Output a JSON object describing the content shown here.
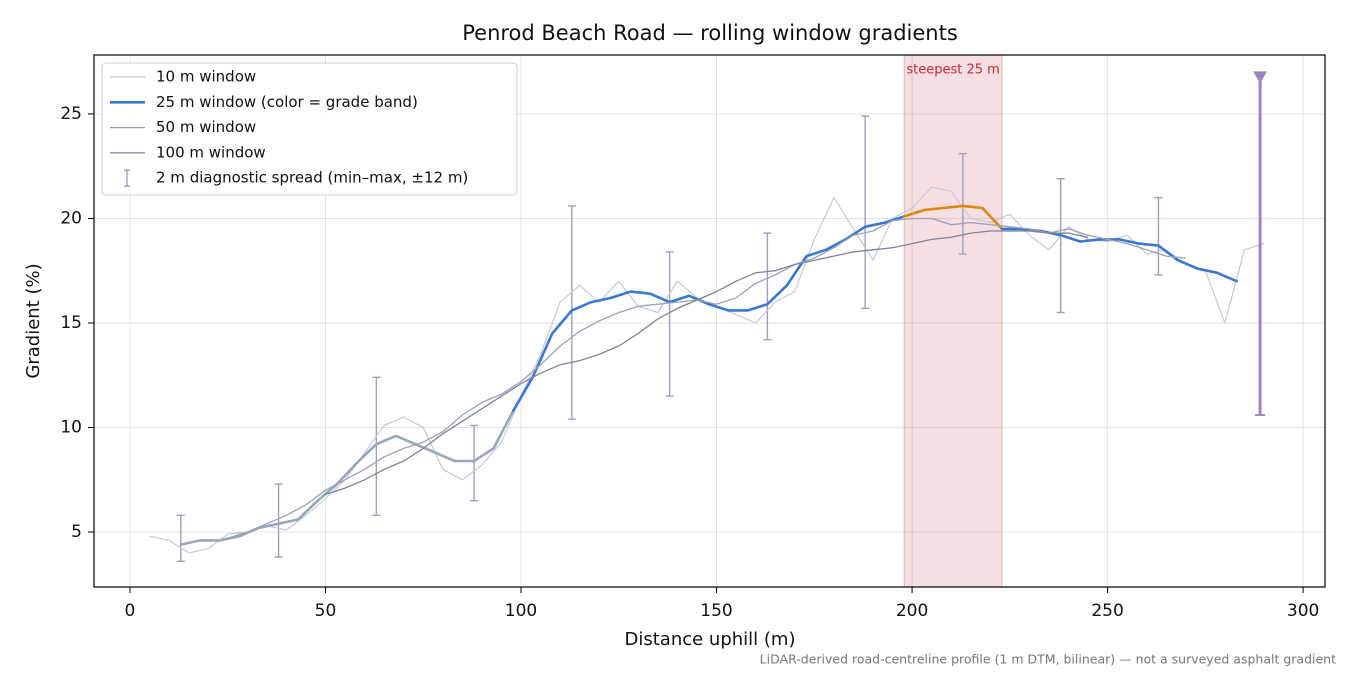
{
  "chart_data": {
    "type": "line",
    "title": "Penrod Beach Road — rolling window gradients",
    "x_label": "Distance uphill (m)",
    "y_label": "Gradient (%)",
    "footnote": "LiDAR-derived road-centreline profile (1 m DTM, bilinear) — not a surveyed asphalt gradient",
    "xlim": [
      -9.2,
      305.6
    ],
    "ylim": [
      2.37,
      27.82
    ],
    "xticks": [
      0,
      50,
      100,
      150,
      200,
      250,
      300
    ],
    "yticks": [
      5,
      10,
      15,
      20,
      25
    ],
    "grid": true,
    "legend": "upper left",
    "series": [
      {
        "name": "10 m window",
        "color": "#c6c9d6",
        "width": 1.2,
        "x": [
          5,
          10,
          15,
          20,
          25,
          30,
          35,
          40,
          45,
          50,
          55,
          60,
          65,
          70,
          75,
          80,
          85,
          90,
          95,
          100,
          105,
          110,
          115,
          120,
          125,
          130,
          135,
          140,
          145,
          150,
          155,
          160,
          165,
          170,
          175,
          180,
          185,
          190,
          195,
          200,
          205,
          210,
          215,
          220,
          225,
          230,
          235,
          240,
          245,
          250,
          255,
          260,
          265,
          270,
          275,
          280,
          285,
          290
        ],
        "values": [
          4.8,
          4.6,
          4.0,
          4.2,
          4.9,
          5.0,
          5.3,
          5.1,
          5.8,
          6.6,
          7.5,
          8.8,
          10.1,
          10.5,
          10.0,
          8.0,
          7.5,
          8.2,
          9.3,
          11.5,
          13.5,
          16.0,
          16.8,
          16.0,
          17.0,
          15.8,
          15.5,
          17.0,
          16.2,
          15.8,
          15.4,
          15.0,
          16.0,
          16.5,
          19.0,
          21.0,
          19.5,
          18.0,
          20.0,
          20.5,
          21.5,
          21.3,
          20.0,
          19.8,
          20.2,
          19.2,
          18.5,
          19.6,
          19.0,
          18.9,
          19.2,
          18.3,
          18.5,
          17.8,
          17.5,
          15.0,
          18.5,
          18.8
        ]
      },
      {
        "name": "25 m window (color = grade band)",
        "color": "#3a78d4",
        "width": 2.6,
        "band_thresholds": [
          10,
          20
        ],
        "band_colors": [
          "#97a6b9",
          "#3a78d4",
          "#d98a0c"
        ],
        "x": [
          13,
          18,
          23,
          28,
          33,
          38,
          43,
          48,
          53,
          58,
          63,
          68,
          73,
          78,
          83,
          88,
          93,
          98,
          103,
          108,
          113,
          118,
          123,
          128,
          133,
          138,
          143,
          148,
          153,
          158,
          163,
          168,
          173,
          178,
          183,
          188,
          193,
          198,
          203,
          208,
          213,
          218,
          223,
          228,
          233,
          238,
          243,
          248,
          253,
          258,
          263,
          268,
          273,
          278,
          283
        ],
        "values": [
          4.4,
          4.6,
          4.6,
          4.8,
          5.2,
          5.4,
          5.6,
          6.5,
          7.3,
          8.3,
          9.2,
          9.6,
          9.2,
          8.8,
          8.4,
          8.4,
          9.0,
          10.8,
          12.4,
          14.5,
          15.6,
          16.0,
          16.2,
          16.5,
          16.4,
          16.0,
          16.3,
          15.9,
          15.6,
          15.6,
          15.9,
          16.8,
          18.2,
          18.5,
          19.0,
          19.6,
          19.8,
          20.1,
          20.4,
          20.5,
          20.6,
          20.5,
          19.5,
          19.5,
          19.4,
          19.2,
          18.9,
          19.0,
          19.0,
          18.8,
          18.7,
          18.0,
          17.6,
          17.4,
          17.0
        ]
      },
      {
        "name": "50 m window",
        "color": "#9ba3b5",
        "width": 1.3,
        "x": [
          25,
          30,
          35,
          40,
          45,
          50,
          55,
          60,
          65,
          70,
          75,
          80,
          85,
          90,
          95,
          100,
          105,
          110,
          115,
          120,
          125,
          130,
          135,
          140,
          145,
          150,
          155,
          160,
          165,
          170,
          175,
          180,
          185,
          190,
          195,
          200,
          205,
          210,
          215,
          220,
          225,
          230,
          235,
          240,
          245,
          250,
          255,
          260,
          265,
          270
        ],
        "values": [
          4.7,
          5.0,
          5.4,
          5.8,
          6.3,
          7.0,
          7.5,
          8.0,
          8.6,
          9.0,
          9.3,
          9.8,
          10.6,
          11.2,
          11.6,
          12.2,
          13.0,
          13.9,
          14.6,
          15.1,
          15.5,
          15.8,
          15.9,
          16.0,
          16.1,
          15.9,
          16.2,
          16.9,
          17.3,
          17.8,
          18.1,
          18.6,
          19.2,
          19.4,
          19.9,
          20.0,
          20.0,
          19.7,
          19.8,
          19.7,
          19.6,
          19.5,
          19.3,
          19.5,
          19.2,
          19.0,
          18.8,
          18.5,
          18.2,
          18.1
        ]
      },
      {
        "name": "100 m window",
        "color": "#7c8494",
        "width": 1.3,
        "x": [
          50,
          55,
          60,
          65,
          70,
          75,
          80,
          85,
          90,
          95,
          100,
          105,
          110,
          115,
          120,
          125,
          130,
          135,
          140,
          145,
          150,
          155,
          160,
          165,
          170,
          175,
          180,
          185,
          190,
          195,
          200,
          205,
          210,
          215,
          220,
          225,
          230,
          235,
          240,
          245
        ],
        "values": [
          6.8,
          7.1,
          7.5,
          8.0,
          8.4,
          9.0,
          9.7,
          10.3,
          10.9,
          11.5,
          12.1,
          12.6,
          13.0,
          13.2,
          13.5,
          13.9,
          14.5,
          15.2,
          15.7,
          16.1,
          16.5,
          17.0,
          17.4,
          17.5,
          17.8,
          18.0,
          18.2,
          18.4,
          18.5,
          18.6,
          18.8,
          19.0,
          19.1,
          19.3,
          19.4,
          19.4,
          19.4,
          19.3,
          19.3,
          19.1
        ]
      }
    ],
    "spread": {
      "name": "2 m diagnostic spread (min–max, ±12 m)",
      "color": "#a49cbf",
      "x": [
        13,
        38,
        63,
        88,
        113,
        138,
        163,
        188,
        213,
        238,
        263
      ],
      "low": [
        3.6,
        3.8,
        5.8,
        6.5,
        10.4,
        11.5,
        14.2,
        15.7,
        18.3,
        15.5,
        17.3
      ],
      "high": [
        5.8,
        7.3,
        12.4,
        10.1,
        20.6,
        18.4,
        19.3,
        24.9,
        23.1,
        21.9,
        21.0
      ]
    },
    "max_marker": {
      "x": 289,
      "low": 10.6,
      "high": 26.8,
      "color": "#9b85bd"
    },
    "highlight": {
      "label": "steepest 25 m",
      "start": 198,
      "end": 223,
      "color": "#e9b3b9",
      "label_color": "#c8283a"
    }
  }
}
